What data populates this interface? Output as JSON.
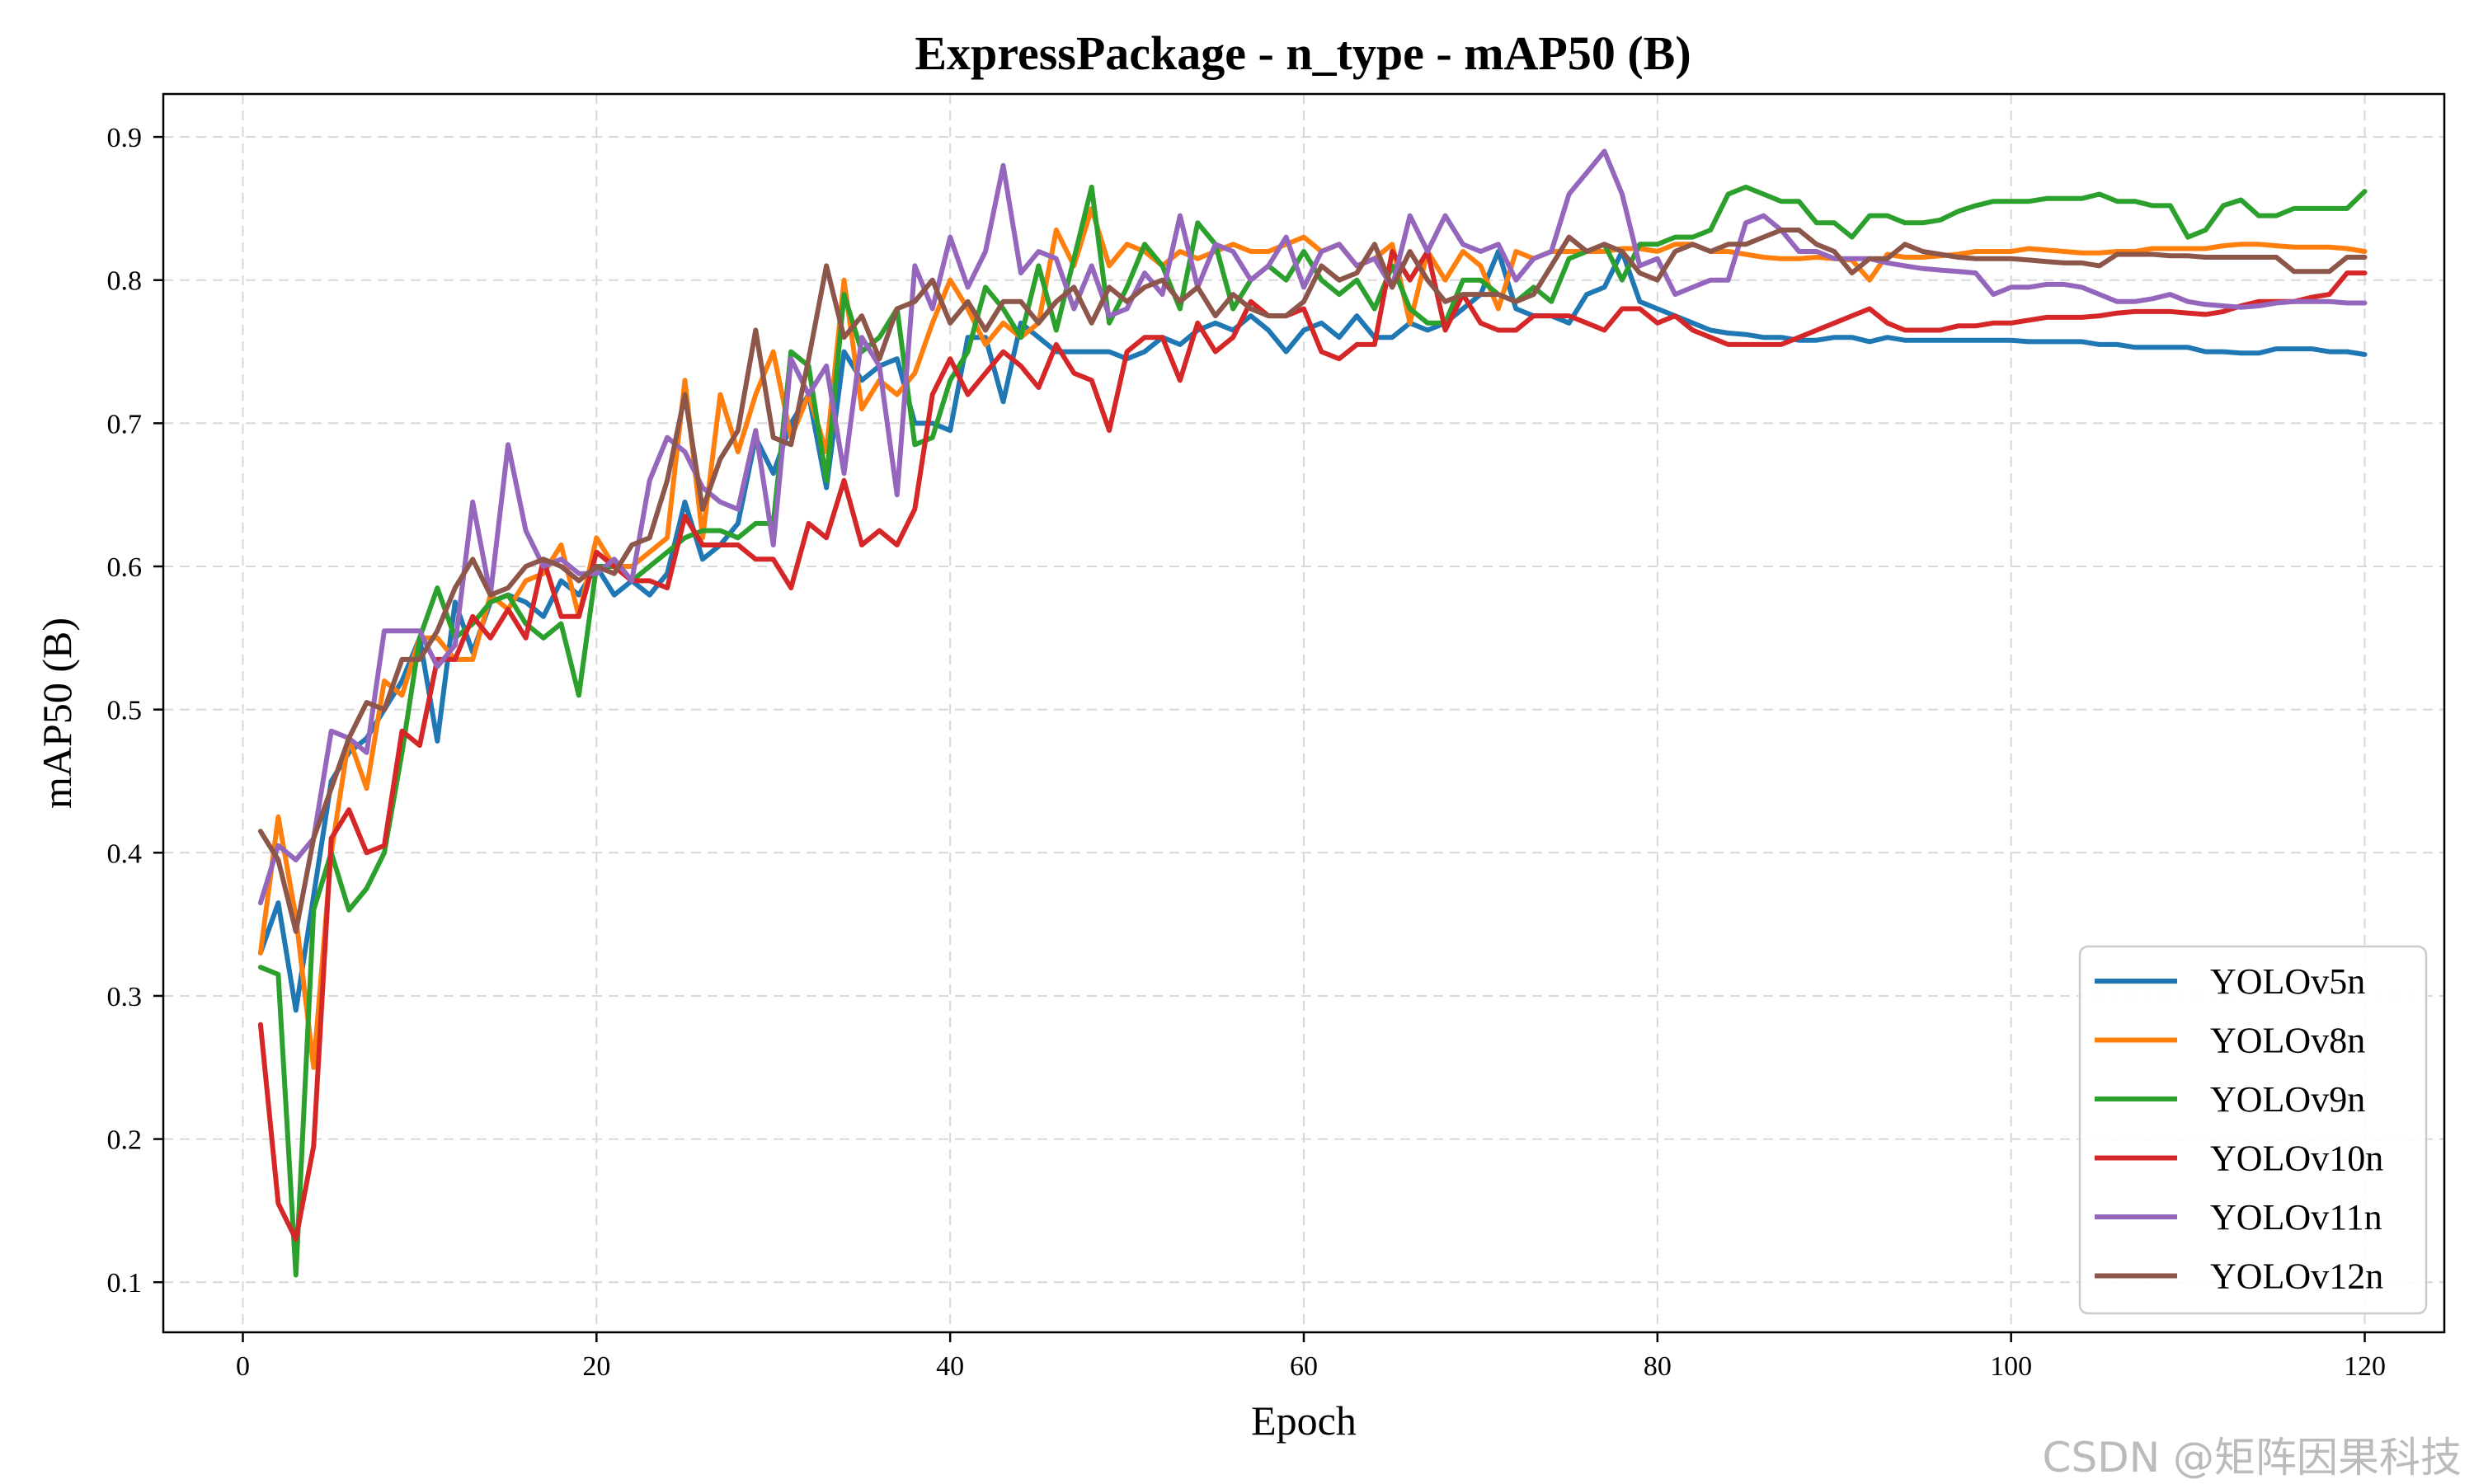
{
  "chart_data": {
    "type": "line",
    "title": "ExpressPackage - n_type - mAP50 (B)",
    "xlabel": "Epoch",
    "ylabel": "mAP50 (B)",
    "xlim": [
      -4.5,
      124.5
    ],
    "ylim": [
      0.065,
      0.93
    ],
    "xticks": [
      0,
      20,
      40,
      60,
      80,
      100,
      120
    ],
    "yticks": [
      0.1,
      0.2,
      0.3,
      0.4,
      0.5,
      0.6,
      0.7,
      0.8,
      0.9
    ],
    "grid": true,
    "legend_position": "lower right",
    "x": [
      1,
      2,
      3,
      4,
      5,
      6,
      7,
      8,
      9,
      10,
      11,
      12,
      13,
      14,
      15,
      16,
      17,
      18,
      19,
      20,
      21,
      22,
      23,
      24,
      25,
      26,
      27,
      28,
      29,
      30,
      31,
      32,
      33,
      34,
      35,
      36,
      37,
      38,
      39,
      40,
      41,
      42,
      43,
      44,
      45,
      46,
      47,
      48,
      49,
      50,
      51,
      52,
      53,
      54,
      55,
      56,
      57,
      58,
      59,
      60,
      61,
      62,
      63,
      64,
      65,
      66,
      67,
      68,
      69,
      70,
      71,
      72,
      73,
      74,
      75,
      76,
      77,
      78,
      79,
      80,
      81,
      82,
      83,
      84,
      85,
      86,
      87,
      88,
      89,
      90,
      91,
      92,
      93,
      94,
      95,
      96,
      97,
      98,
      99,
      100,
      101,
      102,
      103,
      104,
      105,
      106,
      107,
      108,
      109,
      110,
      111,
      112,
      113,
      114,
      115,
      116,
      117,
      118,
      119,
      120
    ],
    "series": [
      {
        "name": "YOLOv5n",
        "color": "#1f77b4",
        "values": [
          0.33,
          0.365,
          0.29,
          0.37,
          0.45,
          0.47,
          0.48,
          0.5,
          0.52,
          0.55,
          0.478,
          0.575,
          0.54,
          0.575,
          0.58,
          0.575,
          0.565,
          0.59,
          0.58,
          0.6,
          0.58,
          0.59,
          0.58,
          0.595,
          0.645,
          0.605,
          0.615,
          0.63,
          0.69,
          0.665,
          0.7,
          0.72,
          0.655,
          0.75,
          0.73,
          0.74,
          0.745,
          0.7,
          0.7,
          0.695,
          0.76,
          0.76,
          0.715,
          0.77,
          0.76,
          0.75,
          0.75,
          0.75,
          0.75,
          0.745,
          0.75,
          0.76,
          0.755,
          0.765,
          0.77,
          0.765,
          0.775,
          0.765,
          0.75,
          0.765,
          0.77,
          0.76,
          0.775,
          0.76,
          0.76,
          0.77,
          0.765,
          0.77,
          0.78,
          0.79,
          0.82,
          0.78,
          0.775,
          0.775,
          0.77,
          0.79,
          0.795,
          0.82,
          0.785,
          0.78,
          0.775,
          0.77,
          0.765,
          0.763,
          0.762,
          0.76,
          0.76,
          0.758,
          0.758,
          0.76,
          0.76,
          0.757,
          0.76,
          0.758,
          0.758,
          0.758,
          0.758,
          0.758,
          0.758,
          0.758,
          0.757,
          0.757,
          0.757,
          0.757,
          0.755,
          0.755,
          0.753,
          0.753,
          0.753,
          0.753,
          0.75,
          0.75,
          0.749,
          0.749,
          0.752,
          0.752,
          0.752,
          0.75,
          0.75,
          0.748
        ]
      },
      {
        "name": "YOLOv8n",
        "color": "#ff7f0e",
        "values": [
          0.33,
          0.425,
          0.355,
          0.25,
          0.4,
          0.48,
          0.445,
          0.52,
          0.51,
          0.55,
          0.55,
          0.535,
          0.535,
          0.58,
          0.57,
          0.59,
          0.595,
          0.615,
          0.565,
          0.62,
          0.6,
          0.6,
          0.61,
          0.62,
          0.73,
          0.62,
          0.72,
          0.68,
          0.72,
          0.75,
          0.69,
          0.72,
          0.68,
          0.8,
          0.71,
          0.73,
          0.72,
          0.735,
          0.77,
          0.8,
          0.78,
          0.755,
          0.77,
          0.76,
          0.77,
          0.835,
          0.81,
          0.85,
          0.81,
          0.825,
          0.82,
          0.81,
          0.82,
          0.815,
          0.82,
          0.825,
          0.82,
          0.82,
          0.825,
          0.83,
          0.82,
          0.825,
          0.81,
          0.815,
          0.825,
          0.77,
          0.82,
          0.8,
          0.82,
          0.81,
          0.78,
          0.82,
          0.815,
          0.82,
          0.82,
          0.82,
          0.82,
          0.822,
          0.822,
          0.82,
          0.825,
          0.825,
          0.82,
          0.82,
          0.818,
          0.816,
          0.815,
          0.815,
          0.816,
          0.815,
          0.814,
          0.8,
          0.818,
          0.816,
          0.816,
          0.817,
          0.818,
          0.82,
          0.82,
          0.82,
          0.822,
          0.821,
          0.82,
          0.819,
          0.819,
          0.82,
          0.82,
          0.822,
          0.822,
          0.822,
          0.822,
          0.824,
          0.825,
          0.825,
          0.824,
          0.823,
          0.823,
          0.823,
          0.822,
          0.82
        ]
      },
      {
        "name": "YOLOv9n",
        "color": "#2ca02c",
        "values": [
          0.32,
          0.315,
          0.105,
          0.36,
          0.4,
          0.36,
          0.375,
          0.4,
          0.47,
          0.55,
          0.585,
          0.55,
          0.56,
          0.575,
          0.58,
          0.56,
          0.55,
          0.56,
          0.51,
          0.6,
          0.6,
          0.59,
          0.6,
          0.61,
          0.62,
          0.625,
          0.625,
          0.62,
          0.63,
          0.63,
          0.75,
          0.74,
          0.66,
          0.79,
          0.75,
          0.76,
          0.78,
          0.685,
          0.69,
          0.73,
          0.75,
          0.795,
          0.78,
          0.76,
          0.81,
          0.765,
          0.815,
          0.865,
          0.77,
          0.795,
          0.825,
          0.81,
          0.78,
          0.84,
          0.825,
          0.78,
          0.8,
          0.81,
          0.8,
          0.82,
          0.8,
          0.79,
          0.8,
          0.78,
          0.81,
          0.78,
          0.77,
          0.77,
          0.8,
          0.8,
          0.79,
          0.785,
          0.795,
          0.785,
          0.815,
          0.82,
          0.825,
          0.8,
          0.825,
          0.825,
          0.83,
          0.83,
          0.835,
          0.86,
          0.865,
          0.86,
          0.855,
          0.855,
          0.84,
          0.84,
          0.83,
          0.845,
          0.845,
          0.84,
          0.84,
          0.842,
          0.848,
          0.852,
          0.855,
          0.855,
          0.855,
          0.857,
          0.857,
          0.857,
          0.86,
          0.855,
          0.855,
          0.852,
          0.852,
          0.83,
          0.835,
          0.852,
          0.856,
          0.845,
          0.845,
          0.85,
          0.85,
          0.85,
          0.85,
          0.862
        ]
      },
      {
        "name": "YOLOv10n",
        "color": "#d62728",
        "values": [
          0.28,
          0.155,
          0.13,
          0.195,
          0.41,
          0.43,
          0.4,
          0.405,
          0.485,
          0.475,
          0.535,
          0.535,
          0.565,
          0.55,
          0.57,
          0.55,
          0.605,
          0.565,
          0.565,
          0.61,
          0.6,
          0.59,
          0.59,
          0.585,
          0.635,
          0.615,
          0.615,
          0.615,
          0.605,
          0.605,
          0.585,
          0.63,
          0.62,
          0.66,
          0.615,
          0.625,
          0.615,
          0.64,
          0.72,
          0.745,
          0.72,
          0.735,
          0.75,
          0.74,
          0.725,
          0.755,
          0.735,
          0.73,
          0.695,
          0.75,
          0.76,
          0.76,
          0.73,
          0.77,
          0.75,
          0.76,
          0.785,
          0.775,
          0.775,
          0.78,
          0.75,
          0.745,
          0.755,
          0.755,
          0.82,
          0.8,
          0.82,
          0.765,
          0.79,
          0.77,
          0.765,
          0.765,
          0.775,
          0.775,
          0.775,
          0.77,
          0.765,
          0.78,
          0.78,
          0.77,
          0.775,
          0.765,
          0.76,
          0.755,
          0.755,
          0.755,
          0.755,
          0.76,
          0.765,
          0.77,
          0.775,
          0.78,
          0.77,
          0.765,
          0.765,
          0.765,
          0.768,
          0.768,
          0.77,
          0.77,
          0.772,
          0.774,
          0.774,
          0.774,
          0.775,
          0.777,
          0.778,
          0.778,
          0.778,
          0.777,
          0.776,
          0.778,
          0.782,
          0.785,
          0.785,
          0.785,
          0.788,
          0.79,
          0.805,
          0.805
        ]
      },
      {
        "name": "YOLOv11n",
        "color": "#9467bd",
        "values": [
          0.365,
          0.405,
          0.395,
          0.41,
          0.485,
          0.48,
          0.47,
          0.555,
          0.555,
          0.555,
          0.53,
          0.545,
          0.645,
          0.58,
          0.685,
          0.625,
          0.6,
          0.605,
          0.595,
          0.595,
          0.605,
          0.59,
          0.66,
          0.69,
          0.68,
          0.655,
          0.645,
          0.64,
          0.695,
          0.615,
          0.745,
          0.72,
          0.74,
          0.665,
          0.76,
          0.74,
          0.65,
          0.81,
          0.78,
          0.83,
          0.795,
          0.82,
          0.88,
          0.805,
          0.82,
          0.815,
          0.78,
          0.81,
          0.775,
          0.78,
          0.805,
          0.79,
          0.845,
          0.795,
          0.825,
          0.82,
          0.8,
          0.81,
          0.83,
          0.795,
          0.82,
          0.825,
          0.81,
          0.815,
          0.795,
          0.845,
          0.82,
          0.845,
          0.825,
          0.82,
          0.825,
          0.8,
          0.815,
          0.82,
          0.86,
          0.875,
          0.89,
          0.86,
          0.81,
          0.815,
          0.79,
          0.795,
          0.8,
          0.8,
          0.84,
          0.845,
          0.835,
          0.82,
          0.82,
          0.815,
          0.815,
          0.815,
          0.812,
          0.81,
          0.808,
          0.807,
          0.806,
          0.805,
          0.79,
          0.795,
          0.795,
          0.797,
          0.797,
          0.795,
          0.79,
          0.785,
          0.785,
          0.787,
          0.79,
          0.785,
          0.783,
          0.782,
          0.781,
          0.782,
          0.784,
          0.785,
          0.785,
          0.785,
          0.784,
          0.784
        ]
      },
      {
        "name": "YOLOv12n",
        "color": "#8c564b",
        "values": [
          0.415,
          0.395,
          0.345,
          0.41,
          0.445,
          0.48,
          0.505,
          0.5,
          0.535,
          0.535,
          0.555,
          0.585,
          0.605,
          0.58,
          0.585,
          0.6,
          0.605,
          0.6,
          0.59,
          0.6,
          0.595,
          0.615,
          0.62,
          0.66,
          0.72,
          0.64,
          0.675,
          0.695,
          0.765,
          0.69,
          0.685,
          0.745,
          0.81,
          0.76,
          0.775,
          0.745,
          0.78,
          0.785,
          0.8,
          0.77,
          0.785,
          0.765,
          0.785,
          0.785,
          0.77,
          0.785,
          0.795,
          0.77,
          0.795,
          0.785,
          0.795,
          0.8,
          0.785,
          0.795,
          0.775,
          0.79,
          0.78,
          0.775,
          0.775,
          0.785,
          0.81,
          0.8,
          0.805,
          0.825,
          0.795,
          0.82,
          0.8,
          0.785,
          0.79,
          0.79,
          0.79,
          0.785,
          0.79,
          0.81,
          0.83,
          0.82,
          0.825,
          0.82,
          0.805,
          0.8,
          0.82,
          0.825,
          0.82,
          0.825,
          0.825,
          0.83,
          0.835,
          0.835,
          0.825,
          0.82,
          0.805,
          0.815,
          0.815,
          0.825,
          0.82,
          0.818,
          0.816,
          0.815,
          0.815,
          0.815,
          0.814,
          0.813,
          0.812,
          0.812,
          0.81,
          0.818,
          0.818,
          0.818,
          0.817,
          0.817,
          0.816,
          0.816,
          0.816,
          0.816,
          0.816,
          0.806,
          0.806,
          0.806,
          0.816,
          0.816
        ]
      }
    ]
  },
  "watermark": "CSDN @矩阵因果科技"
}
